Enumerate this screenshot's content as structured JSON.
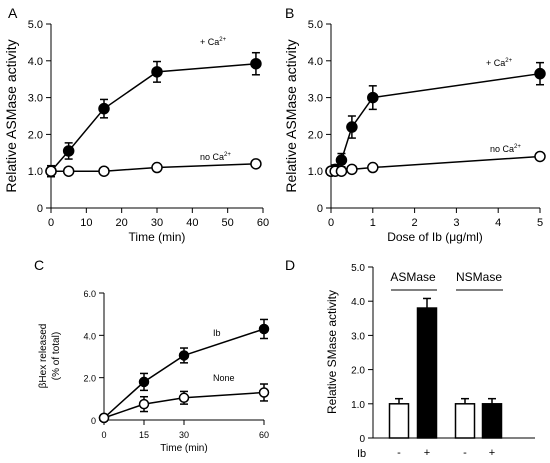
{
  "chart_data": [
    {
      "panel": "A",
      "type": "line",
      "xlabel": "Time (min)",
      "ylabel": "Relative ASMase activity",
      "xlim": [
        0,
        60
      ],
      "ylim": [
        0,
        5.0
      ],
      "xticks": [
        "0",
        "10",
        "20",
        "30",
        "40",
        "50",
        "60"
      ],
      "yticks": [
        "0",
        "1.0",
        "2.0",
        "3.0",
        "4.0",
        "5.0"
      ],
      "series": [
        {
          "name": "+ Ca2+",
          "marker": "filled",
          "x": [
            0,
            5,
            15,
            30,
            58
          ],
          "y": [
            1.0,
            1.55,
            2.7,
            3.7,
            3.92
          ],
          "err": [
            0.15,
            0.22,
            0.25,
            0.28,
            0.3
          ]
        },
        {
          "name": "no Ca2+",
          "marker": "open",
          "x": [
            0,
            5,
            15,
            30,
            58
          ],
          "y": [
            1.0,
            1.0,
            1.0,
            1.1,
            1.2
          ],
          "err": [
            0.1,
            0.05,
            0.05,
            0.05,
            0.05
          ]
        }
      ]
    },
    {
      "panel": "B",
      "type": "line",
      "xlabel": "Dose of Ib (μg/ml)",
      "ylabel": "Relative ASMase activity",
      "xlim": [
        0,
        5
      ],
      "ylim": [
        0,
        5.0
      ],
      "xticks": [
        "0",
        "1",
        "2",
        "3",
        "4",
        "5"
      ],
      "yticks": [
        "0",
        "1.0",
        "2.0",
        "3.0",
        "4.0",
        "5.0"
      ],
      "series": [
        {
          "name": "+ Ca2+",
          "marker": "filled",
          "x": [
            0,
            0.1,
            0.25,
            0.5,
            1.0,
            5.0
          ],
          "y": [
            1.0,
            1.05,
            1.3,
            2.2,
            3.0,
            3.65
          ],
          "err": [
            0.1,
            0.12,
            0.18,
            0.3,
            0.32,
            0.3
          ]
        },
        {
          "name": "no Ca2+",
          "marker": "open",
          "x": [
            0,
            0.1,
            0.25,
            0.5,
            1.0,
            5.0
          ],
          "y": [
            1.0,
            1.0,
            1.0,
            1.05,
            1.1,
            1.4
          ],
          "err": [
            0.05,
            0.05,
            0.05,
            0.05,
            0.05,
            0.06
          ]
        }
      ]
    },
    {
      "panel": "C",
      "type": "line",
      "xlabel": "Time (min)",
      "ylabel": "βHex released (% of total)",
      "xlim": [
        0,
        60
      ],
      "ylim": [
        0,
        6.0
      ],
      "xticks": [
        "0",
        "15",
        "30",
        "60"
      ],
      "yticks": [
        "0",
        "2.0",
        "4.0",
        "6.0"
      ],
      "series": [
        {
          "name": "Ib",
          "marker": "filled",
          "x": [
            0,
            15,
            30,
            60
          ],
          "y": [
            0.1,
            1.8,
            3.05,
            4.3
          ],
          "err": [
            0.05,
            0.4,
            0.35,
            0.45
          ]
        },
        {
          "name": "None",
          "marker": "open",
          "x": [
            0,
            15,
            30,
            60
          ],
          "y": [
            0.1,
            0.75,
            1.05,
            1.3
          ],
          "err": [
            0.05,
            0.35,
            0.3,
            0.4
          ]
        }
      ]
    },
    {
      "panel": "D",
      "type": "bar",
      "ylabel": "Relative SMase activity",
      "ylim": [
        0,
        5.0
      ],
      "yticks": [
        "0",
        "1.0",
        "2.0",
        "3.0",
        "4.0",
        "5.0"
      ],
      "groups": [
        "ASMase",
        "NSMase"
      ],
      "xlabel": "Ib",
      "categories": [
        "-",
        "+",
        "-",
        "+"
      ],
      "values": [
        1.0,
        3.8,
        1.0,
        1.0
      ],
      "err": [
        0.15,
        0.28,
        0.15,
        0.15
      ],
      "fills": [
        "open",
        "filled",
        "open",
        "filled"
      ]
    }
  ]
}
